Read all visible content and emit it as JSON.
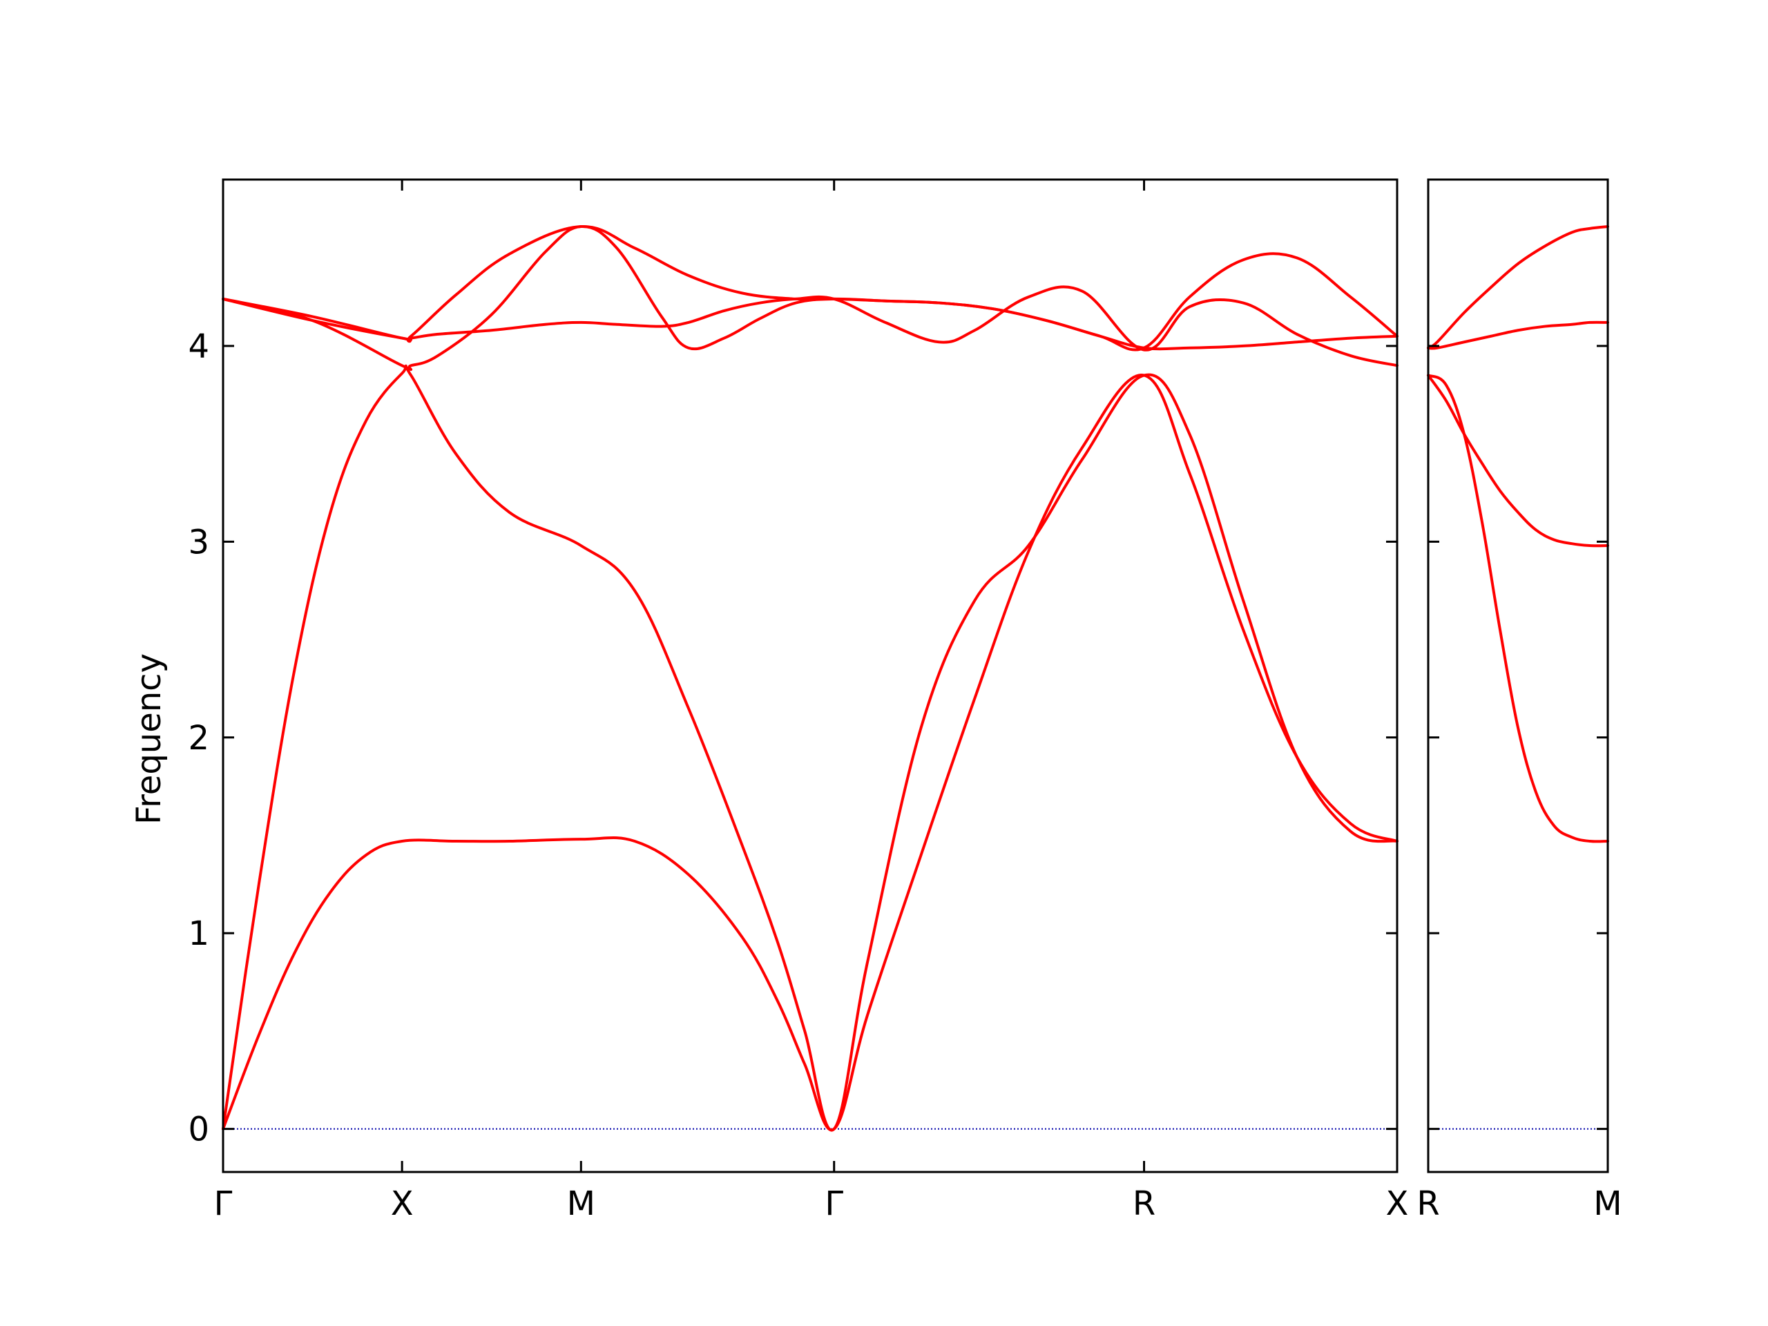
{
  "chart_data": {
    "type": "line",
    "title": "",
    "xlabel": "",
    "ylabel": "Frequency",
    "ylim": [
      -0.22,
      4.85
    ],
    "yticks": [
      0,
      1,
      2,
      3,
      4
    ],
    "grid": false,
    "legend": "none",
    "colors": {
      "bands": "#ff0000",
      "zero_line": "#0000aa",
      "axes": "#000000"
    },
    "panels": [
      {
        "id": "left",
        "xticks": [
          "Γ",
          "X",
          "M",
          "Γ",
          "R",
          "X"
        ],
        "xtick_positions": [
          0,
          1,
          2,
          3.414,
          5.146,
          6.56
        ],
        "xlim": [
          0,
          6.56
        ],
        "bands": [
          {
            "x": [
              0,
              0.2,
              0.4,
              0.6,
              0.8,
              1.0,
              1.3,
              1.6,
              2.0,
              2.3,
              2.6,
              2.9,
              3.1,
              3.25,
              3.414,
              3.6,
              3.9,
              4.2,
              4.5,
              4.8,
              5.146,
              5.4,
              5.7,
              6.0,
              6.3,
              6.56
            ],
            "y": [
              0,
              0.48,
              0.9,
              1.21,
              1.4,
              1.47,
              1.47,
              1.47,
              1.48,
              1.47,
              1.3,
              0.98,
              0.65,
              0.33,
              0,
              0.58,
              1.4,
              2.2,
              2.95,
              3.48,
              3.85,
              3.35,
              2.55,
              1.9,
              1.56,
              1.47
            ]
          },
          {
            "x": [
              0,
              0.2,
              0.4,
              0.6,
              0.8,
              1.0,
              1.05,
              1.3,
              1.6,
              2.0,
              2.3,
              2.6,
              2.9,
              3.1,
              3.25,
              3.414,
              3.6,
              3.9,
              4.2,
              4.5,
              4.8,
              5.146,
              5.4,
              5.7,
              6.0,
              6.3,
              6.56
            ],
            "y": [
              0,
              1.25,
              2.35,
              3.15,
              3.62,
              3.86,
              3.85,
              3.45,
              3.15,
              2.98,
              2.75,
              2.15,
              1.45,
              0.95,
              0.5,
              0,
              0.85,
              2.05,
              2.7,
              2.98,
              3.42,
              3.85,
              3.55,
              2.7,
              1.9,
              1.52,
              1.47
            ]
          },
          {
            "x": [
              0,
              0.5,
              1.0,
              1.05,
              1.2,
              1.5,
              1.8,
              2.0,
              2.2,
              2.45,
              2.6,
              2.8,
              3.0,
              3.2,
              3.414,
              3.7,
              4.0,
              4.2,
              4.5,
              4.8,
              5.146,
              5.4,
              5.7,
              6.0,
              6.3,
              6.56
            ],
            "y": [
              4.24,
              4.13,
              4.04,
              4.04,
              4.06,
              4.08,
              4.11,
              4.12,
              4.11,
              4.1,
              4.12,
              4.18,
              4.22,
              4.24,
              4.24,
              4.12,
              4.02,
              4.08,
              4.25,
              4.28,
              3.98,
              4.2,
              4.22,
              4.06,
              3.95,
              3.9
            ]
          },
          {
            "x": [
              0,
              0.5,
              1.0,
              1.05,
              1.2,
              1.5,
              1.8,
              2.0,
              2.2,
              2.45,
              2.6,
              2.8,
              3.0,
              3.2,
              3.414,
              3.7,
              4.0,
              4.3,
              4.6,
              4.9,
              5.146,
              5.4,
              5.7,
              6.0,
              6.3,
              6.56
            ],
            "y": [
              4.24,
              4.13,
              3.9,
              3.9,
              3.95,
              4.16,
              4.48,
              4.61,
              4.5,
              4.15,
              3.99,
              4.04,
              4.14,
              4.22,
              4.24,
              4.23,
              4.22,
              4.19,
              4.13,
              4.05,
              3.99,
              3.99,
              4.0,
              4.02,
              4.04,
              4.05
            ]
          },
          {
            "x": [
              0,
              0.5,
              1.0,
              1.05,
              1.3,
              1.6,
              2.0,
              2.3,
              2.6,
              2.9,
              3.2,
              3.414,
              3.7,
              4.0,
              4.3,
              4.6,
              4.9,
              5.146,
              5.4,
              5.7,
              6.0,
              6.3,
              6.56
            ],
            "y": [
              4.24,
              4.15,
              4.04,
              4.05,
              4.26,
              4.47,
              4.61,
              4.5,
              4.36,
              4.27,
              4.24,
              4.24,
              4.23,
              4.22,
              4.19,
              4.13,
              4.05,
              3.99,
              4.25,
              4.44,
              4.45,
              4.25,
              4.05
            ]
          }
        ]
      },
      {
        "id": "right",
        "xticks": [
          "R",
          "M"
        ],
        "xtick_positions": [
          0,
          1
        ],
        "xlim": [
          0,
          1
        ],
        "bands": [
          {
            "x": [
              0,
              0.1,
              0.2,
              0.3,
              0.4,
              0.5,
              0.6,
              0.7,
              0.8,
              0.9,
              1.0
            ],
            "y": [
              3.85,
              3.8,
              3.55,
              3.1,
              2.55,
              2.05,
              1.72,
              1.55,
              1.49,
              1.47,
              1.47
            ]
          },
          {
            "x": [
              0,
              0.1,
              0.2,
              0.3,
              0.4,
              0.5,
              0.6,
              0.7,
              0.8,
              0.9,
              1.0
            ],
            "y": [
              3.85,
              3.72,
              3.55,
              3.4,
              3.26,
              3.15,
              3.06,
              3.01,
              2.99,
              2.98,
              2.98
            ]
          },
          {
            "x": [
              0,
              0.05,
              0.2,
              0.35,
              0.5,
              0.65,
              0.8,
              0.9,
              1.0
            ],
            "y": [
              3.99,
              3.99,
              4.02,
              4.05,
              4.08,
              4.1,
              4.11,
              4.12,
              4.12
            ]
          },
          {
            "x": [
              0,
              0.05,
              0.2,
              0.35,
              0.5,
              0.65,
              0.8,
              0.9,
              1.0
            ],
            "y": [
              3.99,
              4.02,
              4.17,
              4.3,
              4.42,
              4.51,
              4.58,
              4.6,
              4.61
            ]
          }
        ]
      }
    ]
  }
}
